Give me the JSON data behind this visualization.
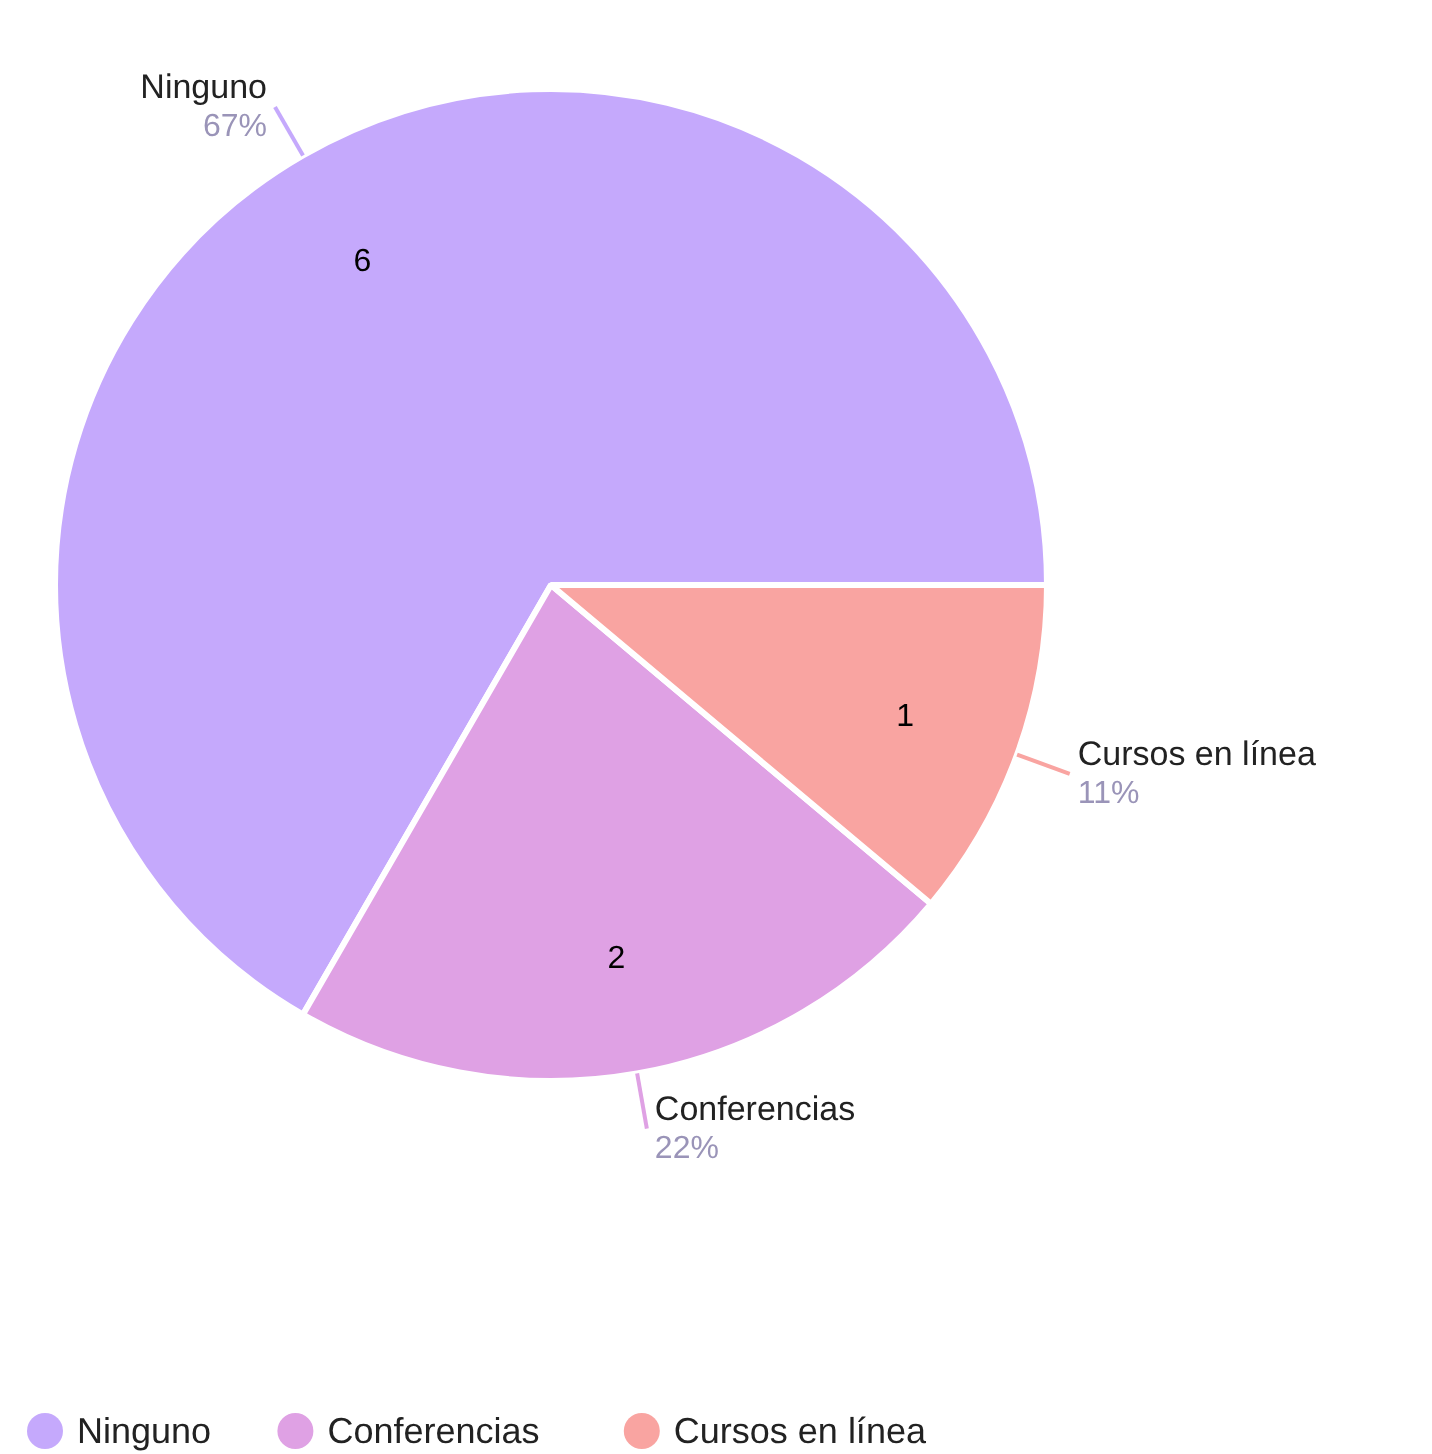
{
  "chart_data": {
    "type": "pie",
    "categories": [
      "Ninguno",
      "Conferencias",
      "Cursos en línea"
    ],
    "values": [
      6,
      2,
      1
    ],
    "colors": [
      "#c5a9fc",
      "#dfa1e4",
      "#f9a4a1"
    ],
    "data_labels": true,
    "annotations": [
      {
        "text": "67%",
        "x": "Ninguno"
      },
      {
        "text": "22%",
        "x": "Conferencias"
      },
      {
        "text": "11%",
        "x": "Cursos en línea"
      }
    ],
    "legend": "bottom"
  }
}
